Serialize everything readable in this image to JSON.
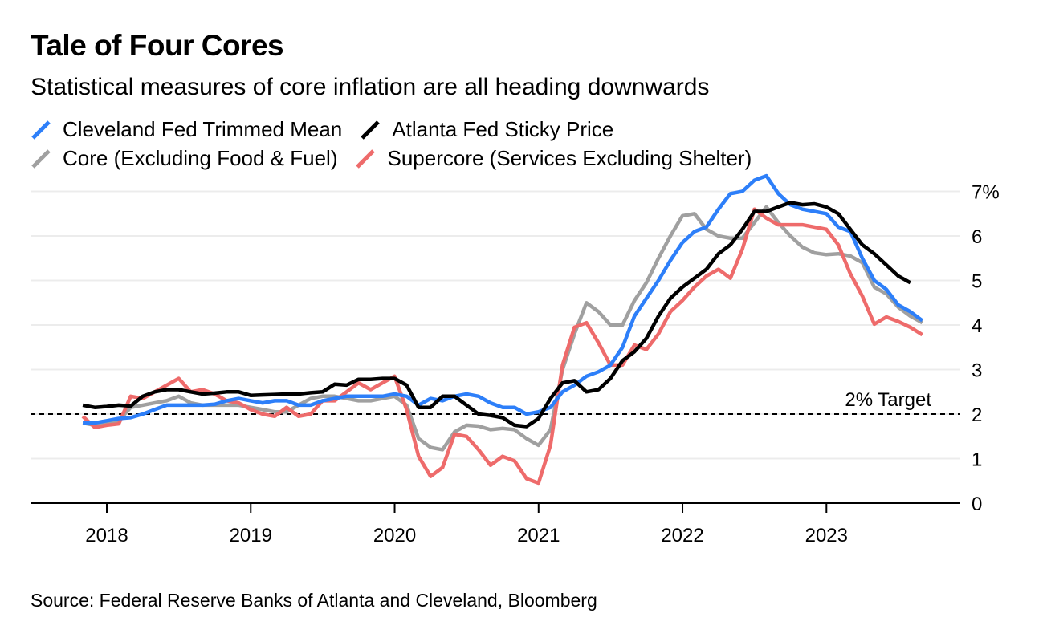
{
  "title": "Tale of Four Cores",
  "subtitle": "Statistical measures of core inflation are all heading downwards",
  "legend": [
    {
      "label": "Cleveland Fed Trimmed Mean",
      "color": "#2d7ff9"
    },
    {
      "label": "Atlanta Fed Sticky Price",
      "color": "#000000"
    },
    {
      "label": "Core (Excluding Food & Fuel)",
      "color": "#a0a0a0"
    },
    {
      "label": "Supercore (Services Excluding Shelter)",
      "color": "#ee6b6b"
    }
  ],
  "source": "Source: Federal Reserve Banks of Atlanta and Cleveland, Bloomberg",
  "chart_data": {
    "type": "line",
    "x_start": 2017.833,
    "x_step": 0.08333,
    "xlim": [
      2017.47,
      2023.93
    ],
    "ylim": [
      0,
      7.4
    ],
    "x_ticks": [
      2018,
      2019,
      2020,
      2021,
      2022,
      2023
    ],
    "x_tick_labels": [
      "2018",
      "2019",
      "2020",
      "2021",
      "2022",
      "2023"
    ],
    "y_ticks": [
      0,
      1,
      2,
      3,
      4,
      5,
      6,
      7
    ],
    "y_tick_labels": [
      "0",
      "1",
      "2",
      "3",
      "4",
      "5",
      "6",
      "7%"
    ],
    "grid": "horizontal",
    "reference_line": {
      "value": 2,
      "label": "2% Target"
    },
    "series": [
      {
        "name": "Core (Excluding Food & Fuel)",
        "color": "#a0a0a0",
        "values": [
          1.8,
          1.75,
          1.8,
          1.85,
          2.15,
          2.2,
          2.25,
          2.3,
          2.4,
          2.25,
          2.2,
          2.2,
          2.2,
          2.2,
          2.15,
          2.1,
          2.05,
          2.05,
          2.2,
          2.35,
          2.4,
          2.4,
          2.35,
          2.3,
          2.3,
          2.35,
          2.4,
          2.2,
          1.45,
          1.25,
          1.2,
          1.6,
          1.75,
          1.73,
          1.65,
          1.68,
          1.65,
          1.45,
          1.3,
          1.65,
          3.0,
          3.8,
          4.5,
          4.3,
          4.0,
          4.0,
          4.55,
          4.95,
          5.5,
          6.0,
          6.45,
          6.5,
          6.15,
          6.0,
          5.95,
          5.95,
          6.3,
          6.65,
          6.3,
          6.0,
          5.75,
          5.62,
          5.58,
          5.6,
          5.55,
          5.4,
          4.85,
          4.7,
          4.4,
          4.2,
          4.05
        ]
      },
      {
        "name": "Supercore (Services Excluding Shelter)",
        "color": "#ee6b6b",
        "values": [
          1.95,
          1.7,
          1.75,
          1.78,
          2.4,
          2.35,
          2.5,
          2.65,
          2.8,
          2.5,
          2.55,
          2.45,
          2.3,
          2.25,
          2.1,
          2.0,
          1.95,
          2.15,
          1.95,
          2.0,
          2.3,
          2.3,
          2.5,
          2.7,
          2.55,
          2.7,
          2.85,
          2.1,
          1.05,
          0.6,
          0.8,
          1.55,
          1.5,
          1.2,
          0.85,
          1.05,
          0.95,
          0.55,
          0.45,
          1.3,
          3.1,
          3.95,
          4.05,
          3.6,
          3.1,
          3.1,
          3.55,
          3.45,
          3.8,
          4.3,
          4.55,
          4.85,
          5.1,
          5.25,
          5.05,
          5.7,
          6.6,
          6.4,
          6.25,
          6.25,
          6.25,
          6.2,
          6.15,
          5.8,
          5.15,
          4.65,
          4.02,
          4.18,
          4.08,
          3.95,
          3.78
        ]
      },
      {
        "name": "Cleveland Fed Trimmed Mean",
        "color": "#2d7ff9",
        "values": [
          1.8,
          1.8,
          1.85,
          1.9,
          1.92,
          2.0,
          2.1,
          2.2,
          2.2,
          2.2,
          2.2,
          2.22,
          2.3,
          2.35,
          2.3,
          2.25,
          2.3,
          2.3,
          2.2,
          2.2,
          2.3,
          2.35,
          2.4,
          2.4,
          2.4,
          2.4,
          2.45,
          2.4,
          2.2,
          2.35,
          2.3,
          2.4,
          2.45,
          2.4,
          2.25,
          2.15,
          2.15,
          2.0,
          2.05,
          2.15,
          2.5,
          2.65,
          2.85,
          2.95,
          3.1,
          3.5,
          4.2,
          4.6,
          5.0,
          5.45,
          5.85,
          6.1,
          6.2,
          6.6,
          6.95,
          7.0,
          7.25,
          7.35,
          6.95,
          6.7,
          6.6,
          6.55,
          6.5,
          6.2,
          6.1,
          5.5,
          5.0,
          4.8,
          4.45,
          4.3,
          4.1
        ]
      },
      {
        "name": "Atlanta Fed Sticky Price",
        "color": "#000000",
        "values": [
          2.2,
          2.15,
          2.17,
          2.2,
          2.18,
          2.4,
          2.5,
          2.55,
          2.55,
          2.5,
          2.45,
          2.47,
          2.5,
          2.5,
          2.42,
          2.43,
          2.44,
          2.45,
          2.45,
          2.48,
          2.5,
          2.67,
          2.65,
          2.78,
          2.78,
          2.8,
          2.8,
          2.65,
          2.15,
          2.15,
          2.4,
          2.4,
          2.2,
          2.0,
          1.97,
          1.92,
          1.75,
          1.72,
          1.9,
          2.35,
          2.7,
          2.75,
          2.5,
          2.55,
          2.8,
          3.2,
          3.4,
          3.7,
          4.2,
          4.6,
          4.85,
          5.05,
          5.25,
          5.6,
          5.8,
          6.15,
          6.55,
          6.55,
          6.65,
          6.75,
          6.7,
          6.72,
          6.65,
          6.5,
          6.15,
          5.8,
          5.6,
          5.35,
          5.1,
          4.95
        ]
      }
    ]
  }
}
